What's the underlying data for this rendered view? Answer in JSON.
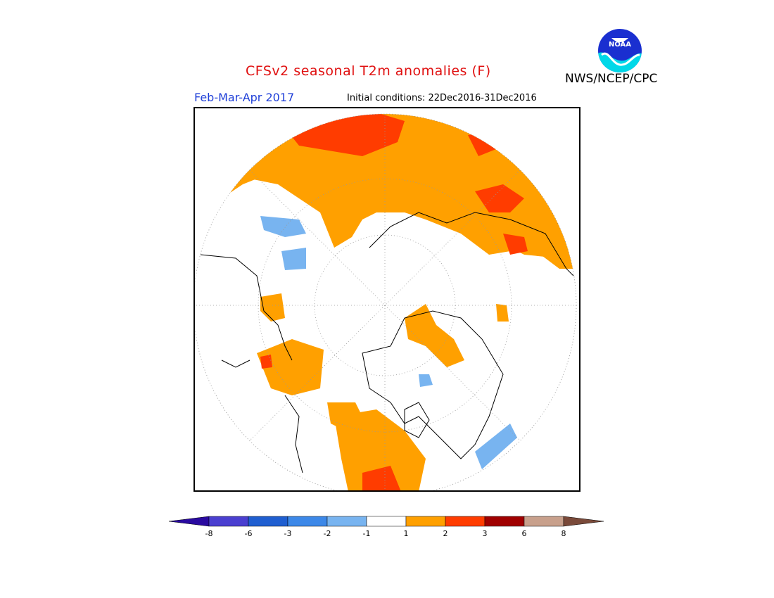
{
  "title": "CFSv2 seasonal T2m anomalies (F)",
  "agency": "NWS/NCEP/CPC",
  "logo_text": "NOAA",
  "period": "Feb-Mar-Apr 2017",
  "initial_conditions": "Initial conditions: 22Dec2016-31Dec2016",
  "colors": {
    "title": "#e01010",
    "period": "#1f3fd8",
    "warm_1_2": "#ffa000",
    "warm_2_3": "#ff3c00",
    "cold_-2_-1": "#78b4f0"
  },
  "colorbar": {
    "colors": [
      "#2a0aa0",
      "#4a3fd0",
      "#1f5ed0",
      "#3c88e8",
      "#78b4f0",
      "#ffffff",
      "#ffa000",
      "#ff3c00",
      "#a00000",
      "#c8a08c",
      "#7a4a3a"
    ],
    "labels": [
      "-8",
      "-6",
      "-3",
      "-2",
      "-1",
      "1",
      "2",
      "3",
      "6",
      "8"
    ]
  }
}
